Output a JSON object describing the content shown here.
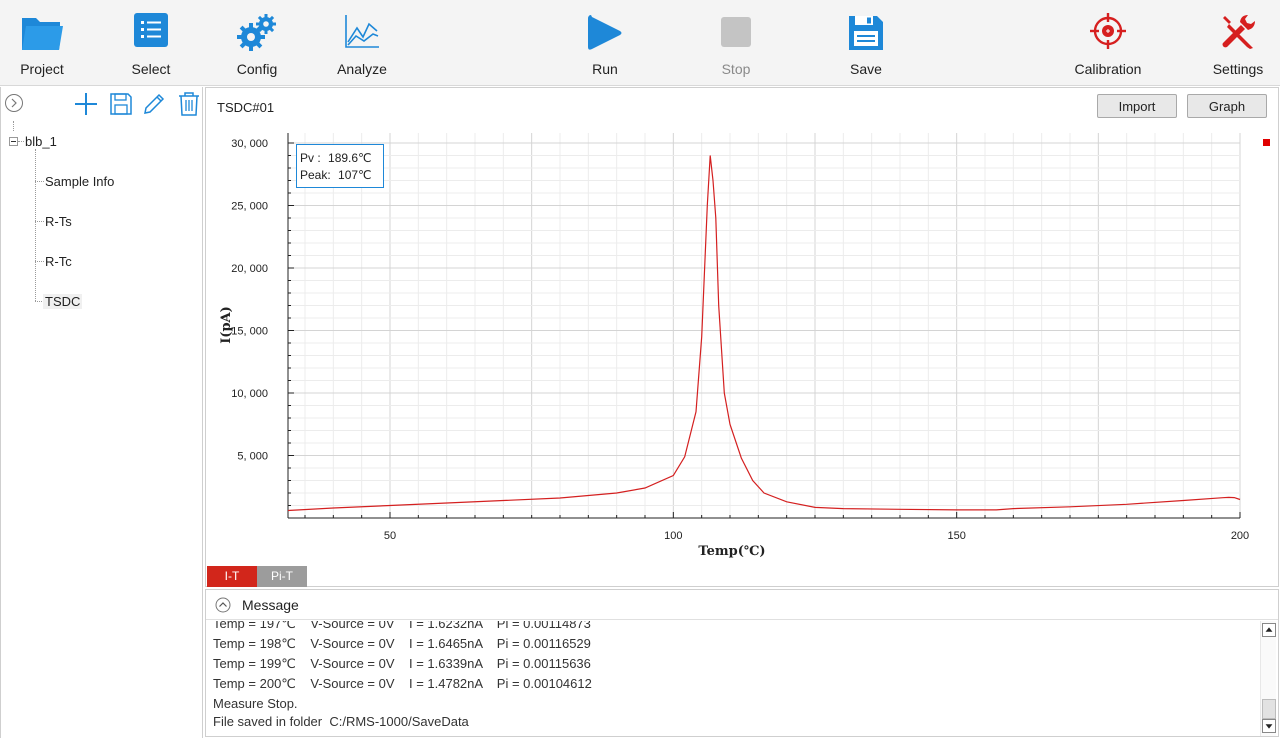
{
  "toolbar": {
    "project": "Project",
    "select": "Select",
    "config": "Config",
    "analyze": "Analyze",
    "run": "Run",
    "stop": "Stop",
    "save": "Save",
    "calibration": "Calibration",
    "settings": "Settings"
  },
  "tree": {
    "root": "blb_1",
    "items": [
      "Sample Info",
      "R-Ts",
      "R-Tc",
      "TSDC"
    ],
    "selected": "TSDC"
  },
  "chart_panel": {
    "title": "TSDC#01",
    "import_label": "Import",
    "graph_label": "Graph",
    "tabs": [
      "I-T",
      "Pi-T"
    ],
    "active_tab": "I-T"
  },
  "legend_box": {
    "pv_label": "Pv :",
    "pv_value": "189.6℃",
    "peak_label": "Peak:",
    "peak_value": "107℃"
  },
  "chart_data": {
    "type": "line",
    "xlabel": "Temp(℃)",
    "ylabel": "I(pA)",
    "xlim": [
      32,
      200
    ],
    "ylim": [
      0,
      30800
    ],
    "x_ticks": [
      50,
      100,
      150,
      200
    ],
    "x_tick_labels": [
      "50",
      "100",
      "150",
      "200"
    ],
    "y_ticks": [
      5000,
      10000,
      15000,
      20000,
      25000,
      30000
    ],
    "y_tick_labels": [
      "5, 000",
      "10, 000",
      "15, 000",
      "20, 000",
      "25, 000",
      "30, 000"
    ],
    "grid": true,
    "color": "#d42020",
    "x": [
      32,
      40,
      50,
      60,
      70,
      80,
      90,
      95,
      100,
      102,
      104,
      105,
      106,
      106.5,
      107,
      107.5,
      108,
      109,
      110,
      112,
      114,
      116,
      120,
      125,
      130,
      140,
      150,
      157,
      160,
      170,
      180,
      190,
      197,
      198,
      199,
      200
    ],
    "y": [
      600,
      800,
      1000,
      1200,
      1400,
      1600,
      2000,
      2400,
      3400,
      4900,
      8500,
      14500,
      25000,
      29000,
      27000,
      24000,
      17000,
      10000,
      7500,
      4800,
      3000,
      2000,
      1300,
      850,
      750,
      700,
      650,
      650,
      750,
      900,
      1100,
      1400,
      1623,
      1647,
      1634,
      1478
    ]
  },
  "message": {
    "title": "Message",
    "lines": [
      "Temp = 197℃    V-Source = 0V    I = 1.6232nA    Pi = 0.00114873",
      "Temp = 198℃    V-Source = 0V    I = 1.6465nA    Pi = 0.00116529",
      "Temp = 199℃    V-Source = 0V    I = 1.6339nA    Pi = 0.00115636",
      "Temp = 200℃    V-Source = 0V    I = 1.4782nA    Pi = 0.00104612",
      "Measure Stop.",
      "File saved in folder  C:/RMS-1000/SaveData"
    ]
  },
  "colors": {
    "accent_blue": "#1e88d8",
    "toolbar_bg": "#f4f4f4",
    "calibration_red": "#d61f1f",
    "series_red": "#d42020"
  }
}
